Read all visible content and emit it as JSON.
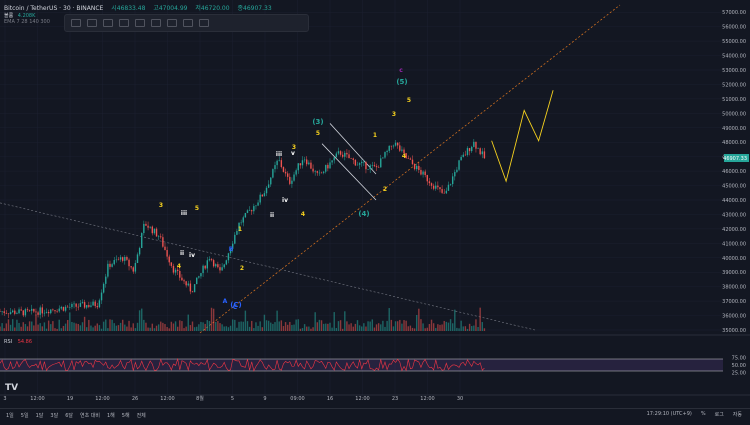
{
  "header": {
    "symbol": "Bitcoin / TetherUS",
    "interval": "30",
    "exchange": "BINANCE",
    "ohlc": {
      "open_label": "시46833.48",
      "high_label": "고47004.99",
      "low_label": "저46720.00",
      "close_label": "종46907.33"
    },
    "volume_label": "볼륨",
    "volume_value": "4.208K",
    "ema_label": "EMA 7 28 140 300"
  },
  "rsi": {
    "label": "RSI",
    "value": "54.86"
  },
  "price_axis": {
    "ticks": [
      "57000.00",
      "56000.00",
      "55000.00",
      "54000.00",
      "53000.00",
      "52000.00",
      "51000.00",
      "50000.00",
      "49000.00",
      "48000.00",
      "47000.00",
      "46000.00",
      "45000.00",
      "44000.00",
      "43000.00",
      "42000.00",
      "41000.00",
      "40000.00",
      "39000.00",
      "38000.00",
      "37000.00",
      "36000.00",
      "35000.00"
    ],
    "current_price": "46907.33",
    "rsi_ticks": [
      "75.00",
      "50.00",
      "25.00"
    ]
  },
  "time_axis": {
    "ticks": [
      "3",
      "12:00",
      "19",
      "12:00",
      "26",
      "12:00",
      "8월",
      "5",
      "9",
      "09:00",
      "16",
      "12:00",
      "23",
      "12:00",
      "30"
    ]
  },
  "wave_labels": [
    {
      "text": "3",
      "color": "#f7d21e"
    },
    {
      "text": "4",
      "color": "#f7d21e"
    },
    {
      "text": "iii",
      "color": "#ffffff"
    },
    {
      "text": "5",
      "color": "#f7d21e"
    },
    {
      "text": "ii",
      "color": "#ffffff"
    },
    {
      "text": "iv",
      "color": "#ffffff"
    },
    {
      "text": "A",
      "color": "#2962ff"
    },
    {
      "text": "B",
      "color": "#2962ff"
    },
    {
      "text": "C",
      "color": "#2962ff"
    },
    {
      "text": "2",
      "color": "#f7d21e"
    },
    {
      "text": "1",
      "color": "#f7d21e"
    },
    {
      "text": "ii",
      "color": "#ffffff"
    },
    {
      "text": "iii",
      "color": "#ffffff"
    },
    {
      "text": "iv",
      "color": "#ffffff"
    },
    {
      "text": "v",
      "color": "#ffffff"
    },
    {
      "text": "3",
      "color": "#f7d21e"
    },
    {
      "text": "4",
      "color": "#f7d21e"
    },
    {
      "text": "(3)",
      "color": "#26a69a"
    },
    {
      "text": "5",
      "color": "#f7d21e"
    },
    {
      "text": "(4)",
      "color": "#26a69a"
    },
    {
      "text": "1",
      "color": "#f7d21e"
    },
    {
      "text": "2",
      "color": "#f7d21e"
    },
    {
      "text": "3",
      "color": "#f7d21e"
    },
    {
      "text": "4",
      "color": "#f7d21e"
    },
    {
      "text": "5",
      "color": "#f7d21e"
    },
    {
      "text": "(5)",
      "color": "#26a69a"
    },
    {
      "text": "c",
      "color": "#9c27b0"
    },
    {
      "text": "(C)",
      "color": "#2962ff"
    }
  ],
  "bottom_bar": {
    "ranges": [
      "1일",
      "5일",
      "1달",
      "3달",
      "6달",
      "연초 대비",
      "1해",
      "5해",
      "전체"
    ],
    "clock": "17:29:10 (UTC+9)",
    "percent": "%",
    "log": "로그",
    "auto": "자동"
  },
  "colors": {
    "background": "#131722",
    "up": "#26a69a",
    "down": "#ef5350",
    "wave_yellow": "#f7d21e",
    "rsi_line": "#f23645",
    "rsi_band": "#7e57c2",
    "trend_orange": "#e2781f",
    "price_tag": "#26a69a"
  },
  "chart_data": {
    "type": "candlestick",
    "y_range": [
      35000,
      57500
    ],
    "rsi_range": [
      0,
      100
    ],
    "price_path": [
      {
        "t": 0.0,
        "p": 36300
      },
      {
        "t": 0.04,
        "p": 36200
      },
      {
        "t": 0.08,
        "p": 36500
      },
      {
        "t": 0.135,
        "p": 36800
      },
      {
        "t": 0.15,
        "p": 39500
      },
      {
        "t": 0.17,
        "p": 40000
      },
      {
        "t": 0.185,
        "p": 39100
      },
      {
        "t": 0.2,
        "p": 42400
      },
      {
        "t": 0.22,
        "p": 41500
      },
      {
        "t": 0.24,
        "p": 39200
      },
      {
        "t": 0.265,
        "p": 37700
      },
      {
        "t": 0.29,
        "p": 40100
      },
      {
        "t": 0.305,
        "p": 38900
      },
      {
        "t": 0.33,
        "p": 42300
      },
      {
        "t": 0.345,
        "p": 43200
      },
      {
        "t": 0.365,
        "p": 44500
      },
      {
        "t": 0.385,
        "p": 46800
      },
      {
        "t": 0.4,
        "p": 45200
      },
      {
        "t": 0.42,
        "p": 47000
      },
      {
        "t": 0.44,
        "p": 45600
      },
      {
        "t": 0.47,
        "p": 47300
      },
      {
        "t": 0.495,
        "p": 46500
      },
      {
        "t": 0.52,
        "p": 46200
      },
      {
        "t": 0.545,
        "p": 48000
      },
      {
        "t": 0.56,
        "p": 47000
      },
      {
        "t": 0.59,
        "p": 45500
      },
      {
        "t": 0.615,
        "p": 44300
      },
      {
        "t": 0.635,
        "p": 46600
      },
      {
        "t": 0.655,
        "p": 48000
      },
      {
        "t": 0.67,
        "p": 46907
      }
    ],
    "projection": [
      {
        "t": 0.68,
        "p": 48100
      },
      {
        "t": 0.7,
        "p": 45300
      },
      {
        "t": 0.725,
        "p": 50200
      },
      {
        "t": 0.745,
        "p": 48100
      },
      {
        "t": 0.765,
        "p": 51600
      }
    ]
  }
}
